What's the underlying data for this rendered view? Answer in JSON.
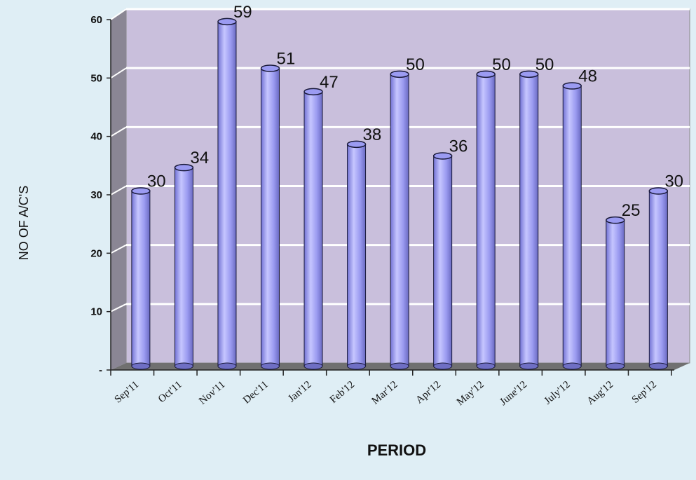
{
  "chart_data": {
    "type": "bar",
    "title": "",
    "xlabel": "PERIOD",
    "ylabel": "NO OF A/C'S",
    "categories": [
      "Sep'11",
      "Oct'11",
      "Nov'11",
      "Dec'11",
      "Jan'12",
      "Feb'12",
      "Mar'12",
      "Apr'12",
      "May'12",
      "June'12",
      "July'12",
      "Aug'12",
      "Sep'12"
    ],
    "values": [
      30,
      34,
      59,
      51,
      47,
      38,
      50,
      36,
      50,
      50,
      48,
      25,
      30
    ],
    "y_tick_labels": [
      "-",
      "10",
      "20",
      "30",
      "40",
      "50",
      "60"
    ],
    "ylim": [
      0,
      60
    ],
    "grid": true,
    "legend": "none",
    "data_labels": true,
    "colors": {
      "bar_fill": "#9b9bf2",
      "bar_highlight": "#c9c9ff",
      "bar_shadow": "#6f6fc4",
      "plot_background": "#c9bfdc",
      "wall_side": "#8a8694",
      "floor": "#707070",
      "gridline": "#ffffff",
      "page_background": "#dfeef5"
    }
  }
}
